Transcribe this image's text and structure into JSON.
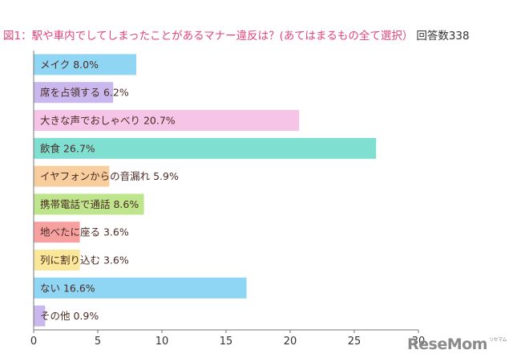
{
  "title": "図1：駅や車内でしてしまったことがあるマナー違反は？(あてはまるもの全て選択）",
  "respondents": "回答数338",
  "watermark": "ReseMom",
  "chart_data": {
    "type": "bar",
    "orientation": "horizontal",
    "categories": [
      "メイク",
      "席を占領する",
      "大きな声でおしゃべり",
      "飲食",
      "イヤフォンからの音漏れ",
      "携帯電話で通話",
      "地べたに座る",
      "列に割り込む",
      "ない",
      "その他"
    ],
    "values": [
      8.0,
      6.2,
      20.7,
      26.7,
      5.9,
      8.6,
      3.6,
      3.6,
      16.6,
      0.9
    ],
    "labels": [
      "メイク 8.0%",
      "席を占領する 6.2%",
      "大きな声でおしゃべり 20.7%",
      "飲食 26.7%",
      "イヤフォンからの音漏れ 5.9%",
      "携帯電話で通話 8.6%",
      "地べたに座る 3.6%",
      "列に割り込む 3.6%",
      "ない 16.6%",
      "その他 0.9%"
    ],
    "colors": [
      "#8fd6f5",
      "#c9b8ee",
      "#f6c4e6",
      "#7fe0d2",
      "#f8ce9e",
      "#bfe58c",
      "#f6a0a0",
      "#fbe79a",
      "#8fd6f5",
      "#c9b8ee"
    ],
    "xlim": [
      0,
      30
    ],
    "xticks": [
      0,
      5,
      10,
      15,
      20,
      25,
      30
    ],
    "xlabel": "",
    "ylabel": "",
    "grid": false
  }
}
